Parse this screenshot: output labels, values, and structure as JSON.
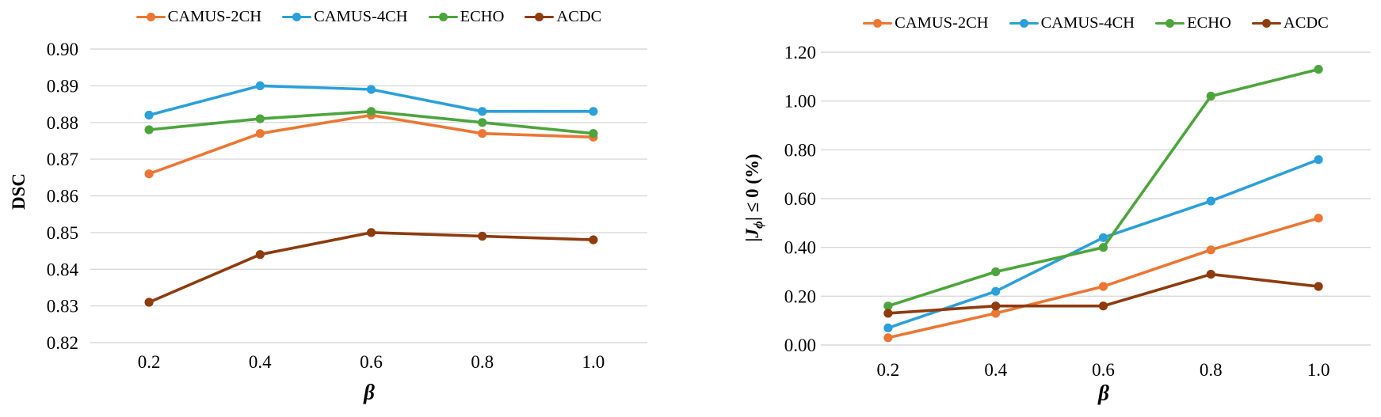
{
  "styles": {
    "background": "#FFFFFF",
    "grid_color": "#D9D9D9",
    "text_color": "#000000",
    "series_colors": {
      "CAMUS-2CH": "#EC7632",
      "CAMUS-4CH": "#2BA0DA",
      "ECHO": "#4CA53C",
      "ACDC": "#8E3B0E"
    }
  },
  "chart_data": [
    {
      "id": "dsc-vs-beta",
      "type": "line",
      "title": "",
      "xlabel": "β",
      "ylabel": "DSC",
      "x": [
        0.2,
        0.4,
        0.6,
        0.8,
        1.0
      ],
      "x_tick_labels": [
        "0.2",
        "0.4",
        "0.6",
        "0.8",
        "1.0"
      ],
      "ylim": [
        0.82,
        0.9
      ],
      "y_tick_labels": [
        "0.90",
        "0.89",
        "0.88",
        "0.87",
        "0.86",
        "0.85",
        "0.84",
        "0.83",
        "0.82"
      ],
      "grid": "horizontal",
      "legend_position": "top",
      "series": [
        {
          "name": "CAMUS-2CH",
          "color": "#EC7632",
          "values": [
            0.866,
            0.877,
            0.882,
            0.877,
            0.876
          ]
        },
        {
          "name": "CAMUS-4CH",
          "color": "#2BA0DA",
          "values": [
            0.882,
            0.89,
            0.889,
            0.883,
            0.883
          ]
        },
        {
          "name": "ECHO",
          "color": "#4CA53C",
          "values": [
            0.878,
            0.881,
            0.883,
            0.88,
            0.877
          ]
        },
        {
          "name": "ACDC",
          "color": "#8E3B0E",
          "values": [
            0.831,
            0.844,
            0.85,
            0.849,
            0.848
          ]
        }
      ]
    },
    {
      "id": "neg-jacobian-vs-beta",
      "type": "line",
      "title": "",
      "xlabel": "β",
      "ylabel": "|Jϕ| ≤ 0 (%)",
      "ylabel_parts": {
        "bar_open": "|",
        "j": "J",
        "sub": "ϕ",
        "bar_close": "|",
        "suffix": " ≤ 0 (%)"
      },
      "x": [
        0.2,
        0.4,
        0.6,
        0.8,
        1.0
      ],
      "x_tick_labels": [
        "0.2",
        "0.4",
        "0.6",
        "0.8",
        "1.0"
      ],
      "ylim": [
        0.0,
        1.2
      ],
      "y_tick_labels": [
        "1.20",
        "1.00",
        "0.80",
        "0.60",
        "0.40",
        "0.20",
        "0.00"
      ],
      "grid": "horizontal",
      "legend_position": "top",
      "series": [
        {
          "name": "CAMUS-2CH",
          "color": "#EC7632",
          "values": [
            0.03,
            0.13,
            0.24,
            0.39,
            0.52
          ]
        },
        {
          "name": "CAMUS-4CH",
          "color": "#2BA0DA",
          "values": [
            0.07,
            0.22,
            0.44,
            0.59,
            0.76
          ]
        },
        {
          "name": "ECHO",
          "color": "#4CA53C",
          "values": [
            0.16,
            0.3,
            0.4,
            1.02,
            1.13
          ]
        },
        {
          "name": "ACDC",
          "color": "#8E3B0E",
          "values": [
            0.13,
            0.16,
            0.16,
            0.29,
            0.24
          ]
        }
      ]
    }
  ]
}
